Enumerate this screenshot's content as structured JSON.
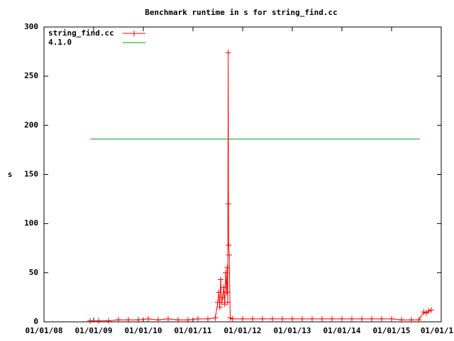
{
  "chart_data": {
    "type": "line",
    "title": "Benchmark runtime in s for string_find.cc",
    "y_label": "s",
    "series": [
      {
        "name": "string_find.cc",
        "color": "#ff0000",
        "marker": "plus",
        "x": [
          2008.93,
          2009.1,
          2009.3,
          2009.5,
          2009.7,
          2009.9,
          2010.1,
          2010.3,
          2010.5,
          2010.7,
          2010.9,
          2011.1,
          2011.3,
          2011.45,
          2011.5,
          2011.52,
          2011.54,
          2011.56,
          2011.58,
          2011.6,
          2011.62,
          2011.64,
          2011.66,
          2011.68,
          2011.69,
          2011.7,
          2011.71,
          2011.715,
          2011.72,
          2011.73,
          2011.75,
          2011.8,
          2012.0,
          2012.2,
          2012.4,
          2012.6,
          2012.8,
          2013.0,
          2013.2,
          2013.4,
          2013.6,
          2013.8,
          2014.0,
          2014.2,
          2014.4,
          2014.6,
          2014.8,
          2015.0,
          2015.2,
          2015.4,
          2015.55,
          2015.65,
          2015.7,
          2015.75,
          2015.8
        ],
        "values": [
          1,
          1,
          1,
          2,
          2,
          2,
          3,
          2,
          3,
          2,
          2,
          3,
          3,
          4,
          20,
          30,
          15,
          43,
          20,
          25,
          35,
          18,
          50,
          30,
          55,
          20,
          274,
          120,
          78,
          68,
          4,
          3,
          3,
          3,
          3,
          3,
          3,
          3,
          3,
          3,
          3,
          3,
          3,
          3,
          3,
          3,
          3,
          3,
          2,
          2,
          2,
          10,
          9,
          11,
          12
        ]
      },
      {
        "name": "4.1.0",
        "color": "#00a000",
        "marker": "none",
        "x": [
          2008.93,
          2015.57
        ],
        "values": [
          186,
          186
        ]
      }
    ],
    "xlim": [
      2008,
      2016
    ],
    "ylim": [
      0,
      300
    ],
    "xticks": [
      {
        "value": 2008,
        "label": "01/01/08"
      },
      {
        "value": 2009,
        "label": "01/01/09"
      },
      {
        "value": 2010,
        "label": "01/01/10"
      },
      {
        "value": 2011,
        "label": "01/01/11"
      },
      {
        "value": 2012,
        "label": "01/01/12"
      },
      {
        "value": 2013,
        "label": "01/01/13"
      },
      {
        "value": 2014,
        "label": "01/01/14"
      },
      {
        "value": 2015,
        "label": "01/01/15"
      },
      {
        "value": 2016,
        "label": "01/01/1"
      }
    ],
    "yticks": [
      0,
      50,
      100,
      150,
      200,
      250,
      300
    ],
    "grid": false,
    "legend": "top-left"
  }
}
